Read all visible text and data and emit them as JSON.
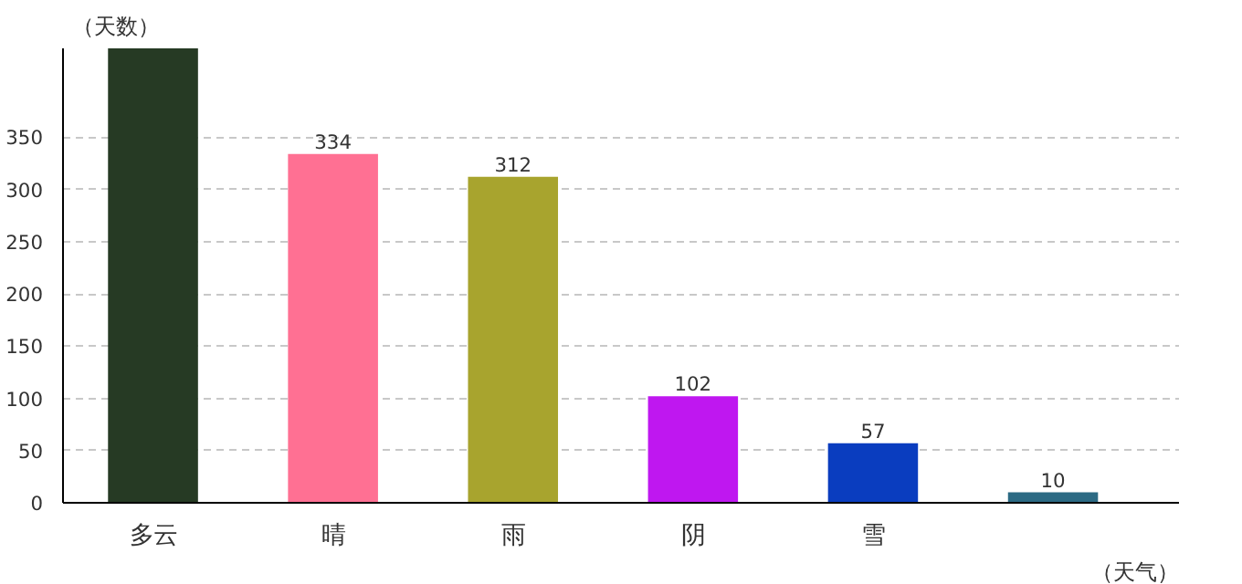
{
  "chart_data": {
    "type": "bar",
    "xlabel": "（天气）",
    "ylabel": "（天数）",
    "categories": [
      "多云",
      "晴",
      "雨",
      "阴",
      "雪",
      null
    ],
    "values": [
      435,
      334,
      312,
      102,
      57,
      10
    ],
    "colors": [
      "#263a24",
      "#ff7093",
      "#a8a42e",
      "#bf17f0",
      "#0a3dbf",
      "#2c6a84"
    ],
    "value_labels": [
      null,
      "334",
      "312",
      "102",
      "57",
      "10"
    ],
    "ylim": [
      0,
      435
    ],
    "yticks": [
      0,
      50,
      100,
      150,
      200,
      250,
      300,
      350
    ],
    "grid": "y"
  }
}
